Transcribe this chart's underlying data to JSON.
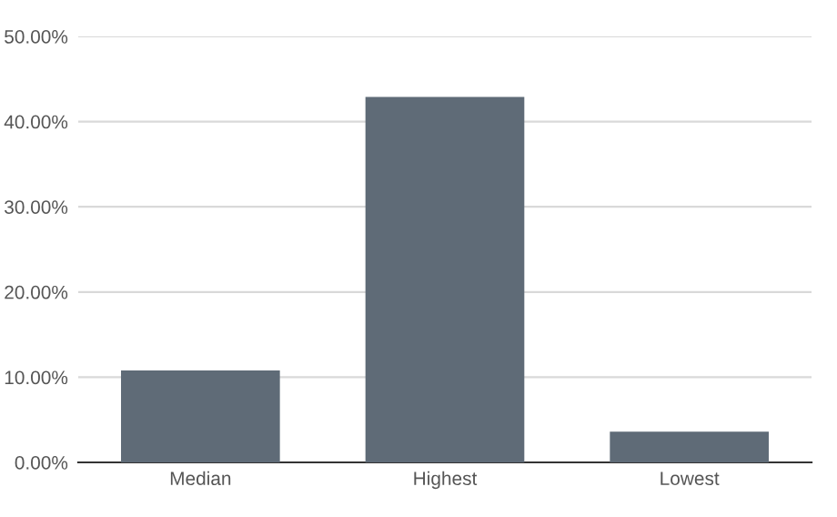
{
  "chart_data": {
    "type": "bar",
    "categories": [
      "Median",
      "Highest",
      "Lowest"
    ],
    "values": [
      10.8,
      42.9,
      3.6
    ],
    "color": "#5f6b77",
    "ylim": [
      0,
      50
    ],
    "yticks": [
      {
        "value": 0,
        "label": "0.00%"
      },
      {
        "value": 10,
        "label": "10.00%"
      },
      {
        "value": 20,
        "label": "20.00%"
      },
      {
        "value": 30,
        "label": "30.00%"
      },
      {
        "value": 40,
        "label": "40.00%"
      },
      {
        "value": 50,
        "label": "50.00%"
      }
    ],
    "grid": "y"
  }
}
